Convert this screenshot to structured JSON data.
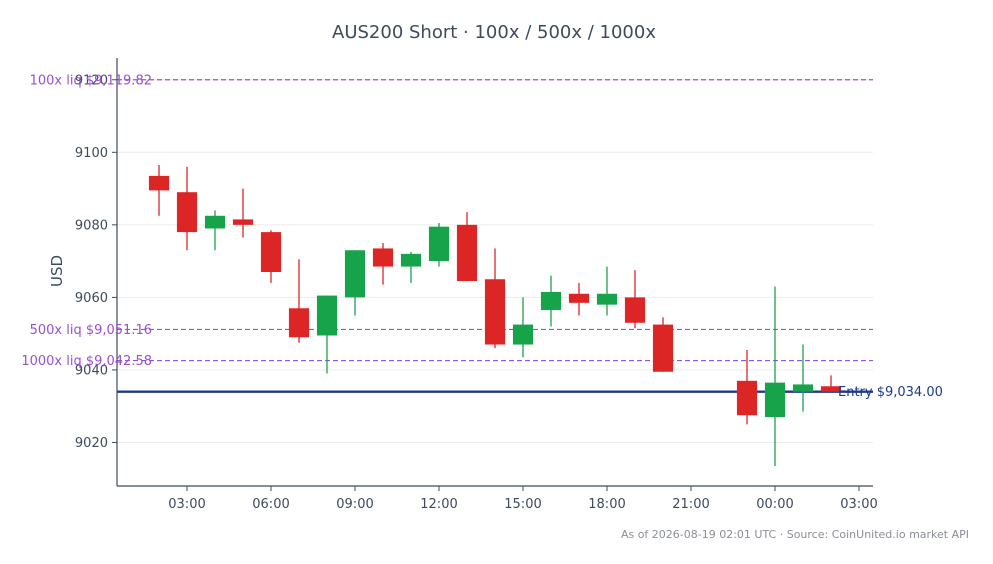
{
  "chart_data": {
    "type": "candlestick",
    "title": "AUS200 Short · 100x / 500x / 1000x",
    "ylabel": "USD",
    "xlabel": "",
    "ylim": [
      9008,
      9126
    ],
    "xlim": [
      0.5,
      27.5
    ],
    "yticks": [
      {
        "value": 9020,
        "label": "9020"
      },
      {
        "value": 9040,
        "label": "9040"
      },
      {
        "value": 9060,
        "label": "9060"
      },
      {
        "value": 9080,
        "label": "9080"
      },
      {
        "value": 9100,
        "label": "9100"
      },
      {
        "value": 9120,
        "label": "9120"
      }
    ],
    "xticks": [
      {
        "x": 3,
        "label": "03:00"
      },
      {
        "x": 6,
        "label": "06:00"
      },
      {
        "x": 9,
        "label": "09:00"
      },
      {
        "x": 12,
        "label": "12:00"
      },
      {
        "x": 15,
        "label": "15:00"
      },
      {
        "x": 18,
        "label": "18:00"
      },
      {
        "x": 21,
        "label": "21:00"
      },
      {
        "x": 24,
        "label": "00:00"
      },
      {
        "x": 27,
        "label": "03:00"
      }
    ],
    "candles": [
      {
        "x": 2,
        "open": 9093.5,
        "high": 9096.5,
        "low": 9082.5,
        "close": 9089.5
      },
      {
        "x": 3,
        "open": 9089.0,
        "high": 9096.0,
        "low": 9073.0,
        "close": 9078.0
      },
      {
        "x": 4,
        "open": 9079.0,
        "high": 9084.0,
        "low": 9073.0,
        "close": 9082.5
      },
      {
        "x": 5,
        "open": 9081.5,
        "high": 9090.0,
        "low": 9076.5,
        "close": 9080.0
      },
      {
        "x": 6,
        "open": 9078.0,
        "high": 9078.5,
        "low": 9064.0,
        "close": 9067.0
      },
      {
        "x": 7,
        "open": 9057.0,
        "high": 9070.5,
        "low": 9047.5,
        "close": 9049.0
      },
      {
        "x": 8,
        "open": 9049.5,
        "high": 9060.5,
        "low": 9039.0,
        "close": 9060.5
      },
      {
        "x": 9,
        "open": 9060.0,
        "high": 9073.0,
        "low": 9055.0,
        "close": 9073.0
      },
      {
        "x": 10,
        "open": 9073.5,
        "high": 9075.0,
        "low": 9063.5,
        "close": 9068.5
      },
      {
        "x": 11,
        "open": 9068.5,
        "high": 9072.5,
        "low": 9064.0,
        "close": 9072.0
      },
      {
        "x": 12,
        "open": 9070.0,
        "high": 9080.5,
        "low": 9068.5,
        "close": 9079.5
      },
      {
        "x": 13,
        "open": 9080.0,
        "high": 9083.5,
        "low": 9064.5,
        "close": 9064.5
      },
      {
        "x": 14,
        "open": 9065.0,
        "high": 9073.5,
        "low": 9046.0,
        "close": 9047.0
      },
      {
        "x": 15,
        "open": 9047.0,
        "high": 9060.0,
        "low": 9043.5,
        "close": 9052.5
      },
      {
        "x": 16,
        "open": 9056.5,
        "high": 9066.0,
        "low": 9052.0,
        "close": 9061.5
      },
      {
        "x": 17,
        "open": 9061.0,
        "high": 9064.0,
        "low": 9055.0,
        "close": 9058.5
      },
      {
        "x": 18,
        "open": 9058.0,
        "high": 9068.5,
        "low": 9055.0,
        "close": 9061.0
      },
      {
        "x": 19,
        "open": 9060.0,
        "high": 9067.5,
        "low": 9051.5,
        "close": 9053.0
      },
      {
        "x": 20,
        "open": 9052.5,
        "high": 9054.5,
        "low": 9039.5,
        "close": 9039.5
      },
      {
        "x": 23,
        "open": 9037.0,
        "high": 9045.5,
        "low": 9025.0,
        "close": 9027.5
      },
      {
        "x": 24,
        "open": 9027.0,
        "high": 9063.0,
        "low": 9013.5,
        "close": 9036.5
      },
      {
        "x": 25,
        "open": 9034.0,
        "high": 9047.0,
        "low": 9028.5,
        "close": 9036.0
      },
      {
        "x": 26,
        "open": 9035.5,
        "high": 9038.5,
        "low": 9034.0,
        "close": 9034.0
      }
    ],
    "levels": [
      {
        "value": 9120.0,
        "label": "100x liq $9,119.82",
        "style": "dashed",
        "color": "#9b4fd1",
        "label_side": "left"
      },
      {
        "value": 9051.16,
        "label": "500x liq $9,051.16",
        "style": "dashed",
        "color": "#9b4fd1",
        "label_side": "left"
      },
      {
        "value": 9042.58,
        "label": "1000x liq $9,042.58",
        "style": "dashed",
        "color": "#9b4fd1",
        "label_side": "left"
      },
      {
        "value": 9034.0,
        "label": "Entry $9,034.00",
        "style": "solid",
        "color": "#1f3a8a",
        "label_side": "right"
      }
    ],
    "colors": {
      "up": "#17a34a",
      "down": "#dc2626",
      "grid": "#ececec",
      "axis": "#3d4b5c"
    },
    "grid": true,
    "footer": "As of 2026-08-19 02:01 UTC · Source: CoinUnited.io market API"
  }
}
